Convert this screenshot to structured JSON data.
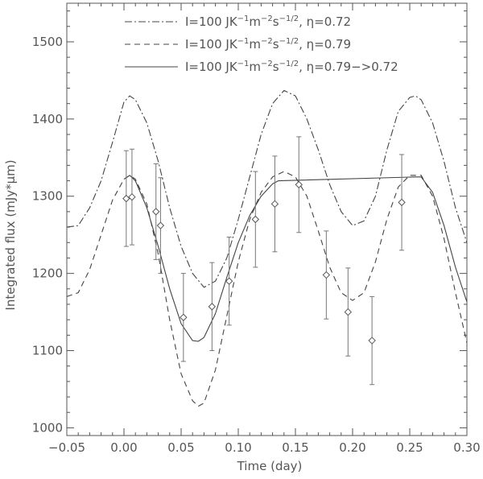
{
  "chart_data": {
    "type": "line",
    "xlabel": "Time (day)",
    "ylabel": "Integrated flux (mJy*μm)",
    "xlim": [
      -0.05,
      0.3
    ],
    "ylim": [
      990,
      1550
    ],
    "xticks": [
      -0.05,
      0.0,
      0.05,
      0.1,
      0.15,
      0.2,
      0.25,
      0.3
    ],
    "xtick_labels": [
      "−0.05",
      "0.00",
      "0.05",
      "0.10",
      "0.15",
      "0.20",
      "0.25",
      "0.30"
    ],
    "yticks": [
      1000,
      1100,
      1200,
      1300,
      1400,
      1500
    ],
    "ytick_labels": [
      "1000",
      "1100",
      "1200",
      "1300",
      "1400",
      "1500"
    ],
    "legend_position": "top",
    "colors": {
      "axis": "#555555",
      "line": "#444444",
      "marker": "#555555"
    },
    "series": [
      {
        "legend": [
          "I=100 JK",
          "−1",
          "m",
          "−2",
          "s",
          "−1/2",
          ", η=0.72"
        ],
        "dash": "dash-dot",
        "x": [
          -0.05,
          -0.04,
          -0.03,
          -0.02,
          -0.01,
          0.0,
          0.005,
          0.01,
          0.02,
          0.03,
          0.04,
          0.05,
          0.06,
          0.07,
          0.08,
          0.09,
          0.1,
          0.11,
          0.12,
          0.13,
          0.14,
          0.15,
          0.16,
          0.17,
          0.18,
          0.19,
          0.2,
          0.21,
          0.22,
          0.23,
          0.24,
          0.25,
          0.255,
          0.26,
          0.27,
          0.28,
          0.29,
          0.3
        ],
        "y": [
          1260,
          1262,
          1285,
          1320,
          1370,
          1422,
          1430,
          1425,
          1395,
          1345,
          1285,
          1235,
          1200,
          1182,
          1190,
          1220,
          1270,
          1325,
          1380,
          1420,
          1437,
          1430,
          1400,
          1360,
          1315,
          1280,
          1262,
          1268,
          1300,
          1360,
          1410,
          1428,
          1430,
          1425,
          1395,
          1345,
          1285,
          1240
        ]
      },
      {
        "legend": [
          "I=100 JK",
          "−1",
          "m",
          "−2",
          "s",
          "−1/2",
          ", η=0.79"
        ],
        "dash": "dashed",
        "x": [
          -0.05,
          -0.04,
          -0.03,
          -0.02,
          -0.01,
          0.0,
          0.005,
          0.01,
          0.02,
          0.03,
          0.04,
          0.05,
          0.06,
          0.065,
          0.07,
          0.08,
          0.09,
          0.1,
          0.11,
          0.12,
          0.13,
          0.14,
          0.15,
          0.16,
          0.17,
          0.18,
          0.19,
          0.2,
          0.21,
          0.22,
          0.23,
          0.24,
          0.25,
          0.26,
          0.27,
          0.28,
          0.29,
          0.3
        ],
        "y": [
          1170,
          1175,
          1205,
          1250,
          1295,
          1322,
          1327,
          1322,
          1290,
          1225,
          1140,
          1070,
          1035,
          1028,
          1032,
          1075,
          1145,
          1215,
          1270,
          1305,
          1325,
          1332,
          1325,
          1300,
          1255,
          1208,
          1175,
          1165,
          1175,
          1215,
          1270,
          1312,
          1327,
          1327,
          1300,
          1245,
          1175,
          1110
        ]
      },
      {
        "legend": [
          "I=100 JK",
          "−1",
          "m",
          "−2",
          "s",
          "−1/2",
          ", η=0.79−>0.72"
        ],
        "dash": "solid",
        "x": [
          0.0,
          0.005,
          0.01,
          0.02,
          0.03,
          0.04,
          0.05,
          0.06,
          0.065,
          0.07,
          0.08,
          0.09,
          0.1,
          0.11,
          0.12,
          0.13,
          0.135,
          0.255,
          0.26,
          0.27,
          0.28,
          0.29,
          0.3
        ],
        "y": [
          1322,
          1327,
          1320,
          1285,
          1235,
          1180,
          1135,
          1113,
          1112,
          1117,
          1148,
          1195,
          1240,
          1275,
          1300,
          1316,
          1320,
          1325,
          1325,
          1305,
          1262,
          1208,
          1163
        ]
      }
    ],
    "points": {
      "marker": "diamond",
      "x": [
        0.002,
        0.007,
        0.028,
        0.032,
        0.052,
        0.077,
        0.092,
        0.115,
        0.132,
        0.153,
        0.177,
        0.196,
        0.217,
        0.243
      ],
      "y": [
        1297,
        1299,
        1280,
        1262,
        1143,
        1157,
        1190,
        1270,
        1290,
        1315,
        1198,
        1150,
        1113,
        1292
      ],
      "err": [
        62,
        62,
        62,
        62,
        57,
        57,
        57,
        62,
        62,
        62,
        57,
        57,
        57,
        62
      ]
    }
  }
}
